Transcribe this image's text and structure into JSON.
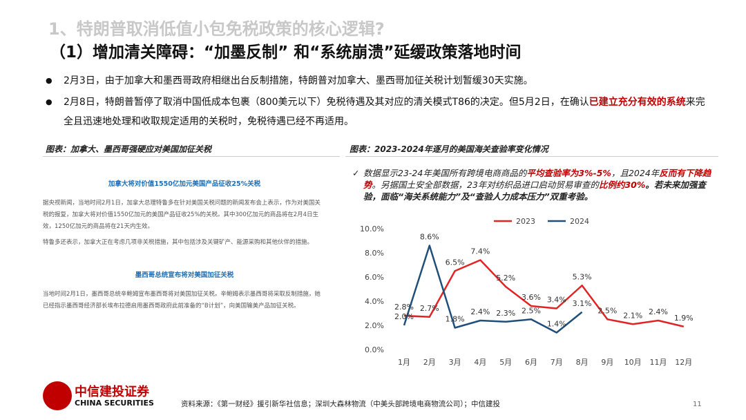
{
  "header": {
    "title": "1、特朗普取消低值小包免税政策的核心逻辑?",
    "subtitle": "（1）增加清关障碍：“加墨反制” 和“系统崩溃”延缓政策落地时间"
  },
  "bullets": [
    [
      {
        "text": "2月3日，由于加拿大和墨西哥政府相继出台反制措施，特朗普对加拿大、墨西哥加征关税计划暂缓30天实施。",
        "emphasis": false
      }
    ],
    [
      {
        "text": "2月8日，特朗普暂停了取消中国低成本包裹（800美元以下）免税待遇及其对应的清关模式T86的决定。但5月2日，在确认",
        "emphasis": false
      },
      {
        "text": "已建立充分有效的系统",
        "emphasis": true
      },
      {
        "text": "来完全且迅速地处理和收取规定适用的关税时，免税待遇已经不再适用。",
        "emphasis": false
      }
    ]
  ],
  "left_figure": {
    "caption": "图表：加拿大、墨西哥强硬应对美国加征关税",
    "sections": [
      {
        "heading": "加拿大将对价值1550亿加元美国产品征收25%关税",
        "paragraphs": [
          "据央视新闻，当地时间2月1日，加拿大总理特鲁多在针对美国关税问题的新闻发布会上表示，作为对美国关税的报复，加拿大将对价值1550亿加元的美国产品征收25%的关税。其中300亿加元的商品将在2月4日生效，1250亿加元的商品将在21天内生效。",
          "特鲁多还表示，加拿大正在考虑几项非关税措施，其中包括涉及关键矿产、能源采购和其他伙伴的措施。"
        ]
      },
      {
        "heading": "墨西哥总统宣布将对美国加征关税",
        "paragraphs": [
          "当地时间2月1日，墨西哥总统辛鲍姆宣布墨西哥将对美国加征关税。辛鲍姆表示墨西哥将采取反制措施，她已经指示墨西哥经济部长埃布拉德启用墨西哥政府此前准备的“B计划”，向美国输美产品加征关税。"
        ]
      }
    ]
  },
  "right_figure": {
    "caption": "图表：2023-2024年逐月的美国海关查验率变化情况",
    "note": [
      {
        "text": "数据显示23-24年美国所有跨境电商商品的",
        "emphasis": false
      },
      {
        "text": "平均查验率为3%-5%",
        "emphasis": true
      },
      {
        "text": "，且2024年",
        "emphasis": false
      },
      {
        "text": "反而有下降趋势",
        "emphasis": true
      },
      {
        "text": "。另据国土安全部数据，23年对纺织品进口启动贸易审查的",
        "emphasis": false
      },
      {
        "text": "比例约30%",
        "emphasis": true
      },
      {
        "text": "。若未来加强查验，面临“海关系统能力”及“查验人力成本压力”双重考验。",
        "emphasis": false,
        "bold": true
      }
    ]
  },
  "chart_data": {
    "type": "line",
    "categories": [
      "1月",
      "2月",
      "3月",
      "4月",
      "5月",
      "6月",
      "7月",
      "8月",
      "9月",
      "10月",
      "11月",
      "12月"
    ],
    "series": [
      {
        "name": "2023",
        "color": "#e02424",
        "values": [
          2.8,
          2.7,
          6.5,
          7.4,
          5.2,
          3.6,
          3.4,
          5.3,
          2.5,
          2.1,
          2.4,
          1.9
        ],
        "value_labels": [
          "2.8%",
          "2.7%",
          "6.5%",
          "7.4%",
          "5.2%",
          "3.6%",
          "3.4%",
          "5.3%",
          "2.5%",
          "2.1%",
          "2.4%",
          "1.9%"
        ]
      },
      {
        "name": "2024",
        "color": "#1f4e79",
        "values": [
          2.0,
          8.6,
          1.8,
          2.4,
          2.3,
          2.5,
          1.4,
          3.1,
          null,
          null,
          null,
          null
        ],
        "value_labels": [
          "2.0%",
          "8.6%",
          "1.8%",
          "2.4%",
          "2.3%",
          "2.5%",
          "1.4%",
          "3.1%",
          null,
          null,
          null,
          null
        ]
      }
    ],
    "ylim": [
      0,
      10
    ],
    "yticks": [
      {
        "value": 0,
        "label": "0.0%"
      },
      {
        "value": 2,
        "label": "2.0%"
      },
      {
        "value": 4,
        "label": "4.0%"
      },
      {
        "value": 6,
        "label": "6.0%"
      },
      {
        "value": 8,
        "label": "8.0%"
      },
      {
        "value": 10,
        "label": "10.0%"
      }
    ],
    "legend": "top"
  },
  "footer": {
    "logo_cn": "中信建投证券",
    "logo_en": "CHINA SECURITIES",
    "source": "资料来源：《第一财经》援引新华社信息；深圳大森林物流（中美头部跨境电商物流公司）；中信建投",
    "page": "11"
  }
}
